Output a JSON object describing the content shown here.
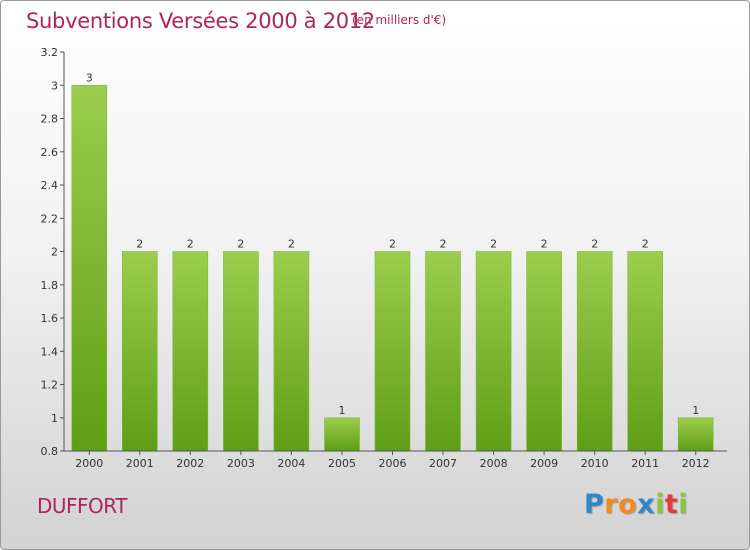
{
  "title": "Subventions Versées 2000 à 2012",
  "subtitle": "(en milliers d'€)",
  "commune": "DUFFORT",
  "logo": {
    "text": "Proxiti",
    "letters": [
      {
        "ch": "P",
        "color": "#2f86c8"
      },
      {
        "ch": "r",
        "color": "#f28a1e"
      },
      {
        "ch": "o",
        "color": "#f28a1e"
      },
      {
        "ch": "x",
        "color": "#2f86c8"
      },
      {
        "ch": "i",
        "color": "#8cc63f"
      },
      {
        "ch": "t",
        "color": "#e23b3b"
      },
      {
        "ch": "i",
        "color": "#8cc63f"
      }
    ]
  },
  "chart_data": {
    "type": "bar",
    "title": "Subventions Versées 2000 à 2012",
    "subtitle": "(en milliers d'€)",
    "categories": [
      "2000",
      "2001",
      "2002",
      "2003",
      "2004",
      "2005",
      "2006",
      "2007",
      "2008",
      "2009",
      "2010",
      "2011",
      "2012"
    ],
    "values": [
      3,
      2,
      2,
      2,
      2,
      1,
      2,
      2,
      2,
      2,
      2,
      2,
      1
    ],
    "data_labels": [
      "3",
      "2",
      "2",
      "2",
      "2",
      "1",
      "2",
      "2",
      "2",
      "2",
      "2",
      "2",
      "1"
    ],
    "ylim": [
      0.8,
      3.2
    ],
    "yticks": [
      0.8,
      1,
      1.2,
      1.4,
      1.6,
      1.8,
      2,
      2.2,
      2.4,
      2.6,
      2.8,
      3,
      3.2
    ],
    "ytick_labels": [
      "0.8",
      "1",
      "1.2",
      "1.4",
      "1.6",
      "1.8",
      "2",
      "2.2",
      "2.4",
      "2.6",
      "2.8",
      "3",
      "3.2"
    ],
    "xlabel": "",
    "ylabel": "",
    "grid": false,
    "legend": "none",
    "bar_color_top": "#9ccd4e",
    "bar_color_bottom": "#5f9e16",
    "axis_color": "#555555"
  }
}
